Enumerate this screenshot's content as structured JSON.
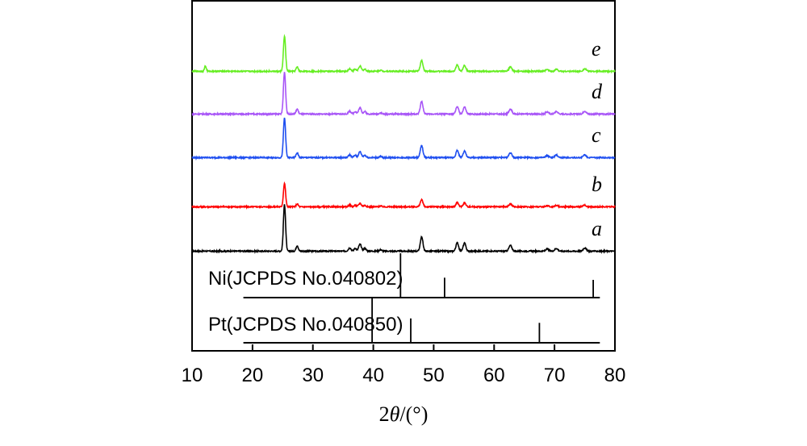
{
  "chart_data": {
    "type": "line",
    "title": "",
    "xlabel_prefix": "2",
    "xlabel_theta": "θ",
    "xlabel_suffix": "/(°)",
    "ylabel": "",
    "xlim": [
      10,
      80
    ],
    "xticks": [
      "10",
      "20",
      "30",
      "40",
      "50",
      "60",
      "70",
      "80"
    ],
    "grid": false,
    "peaks": [
      {
        "x": 25.3,
        "w": 0.18,
        "h": 1.0
      },
      {
        "x": 27.4,
        "w": 0.18,
        "h": 0.12
      },
      {
        "x": 36.1,
        "w": 0.22,
        "h": 0.07
      },
      {
        "x": 37.0,
        "w": 0.2,
        "h": 0.06
      },
      {
        "x": 37.8,
        "w": 0.22,
        "h": 0.15
      },
      {
        "x": 38.6,
        "w": 0.2,
        "h": 0.06
      },
      {
        "x": 41.2,
        "w": 0.2,
        "h": 0.03
      },
      {
        "x": 48.0,
        "w": 0.22,
        "h": 0.3
      },
      {
        "x": 53.9,
        "w": 0.22,
        "h": 0.18
      },
      {
        "x": 55.1,
        "w": 0.22,
        "h": 0.17
      },
      {
        "x": 62.7,
        "w": 0.25,
        "h": 0.12
      },
      {
        "x": 68.8,
        "w": 0.25,
        "h": 0.05
      },
      {
        "x": 70.3,
        "w": 0.25,
        "h": 0.06
      },
      {
        "x": 75.0,
        "w": 0.25,
        "h": 0.07
      }
    ],
    "series": [
      {
        "name": "a",
        "label": "a",
        "color": "#000000",
        "scale": 1.0,
        "extra_peaks": []
      },
      {
        "name": "b",
        "label": "b",
        "color": "#ff0000",
        "scale": 0.5,
        "extra_peaks": []
      },
      {
        "name": "c",
        "label": "c",
        "color": "#1f4ff0",
        "scale": 0.85,
        "extra_peaks": []
      },
      {
        "name": "d",
        "label": "d",
        "color": "#a855f7",
        "scale": 0.9,
        "extra_peaks": []
      },
      {
        "name": "e",
        "label": "e",
        "color": "#66ee22",
        "scale": 0.75,
        "extra_peaks": [
          {
            "x": 12.2,
            "w": 0.15,
            "h": 0.15
          }
        ]
      }
    ],
    "reference_patterns": [
      {
        "name": "Ni",
        "label": "Ni(JCPDS No.040802)",
        "xrange": [
          18.5,
          77.5
        ],
        "sticks": [
          44.5,
          51.8,
          76.4
        ],
        "stick_heights": [
          1.0,
          0.45,
          0.4
        ]
      },
      {
        "name": "Pt",
        "label": "Pt(JCPDS No.040850)",
        "xrange": [
          18.5,
          77.5
        ],
        "sticks": [
          39.8,
          46.2,
          67.5
        ],
        "stick_heights": [
          1.0,
          0.55,
          0.45
        ]
      }
    ]
  }
}
